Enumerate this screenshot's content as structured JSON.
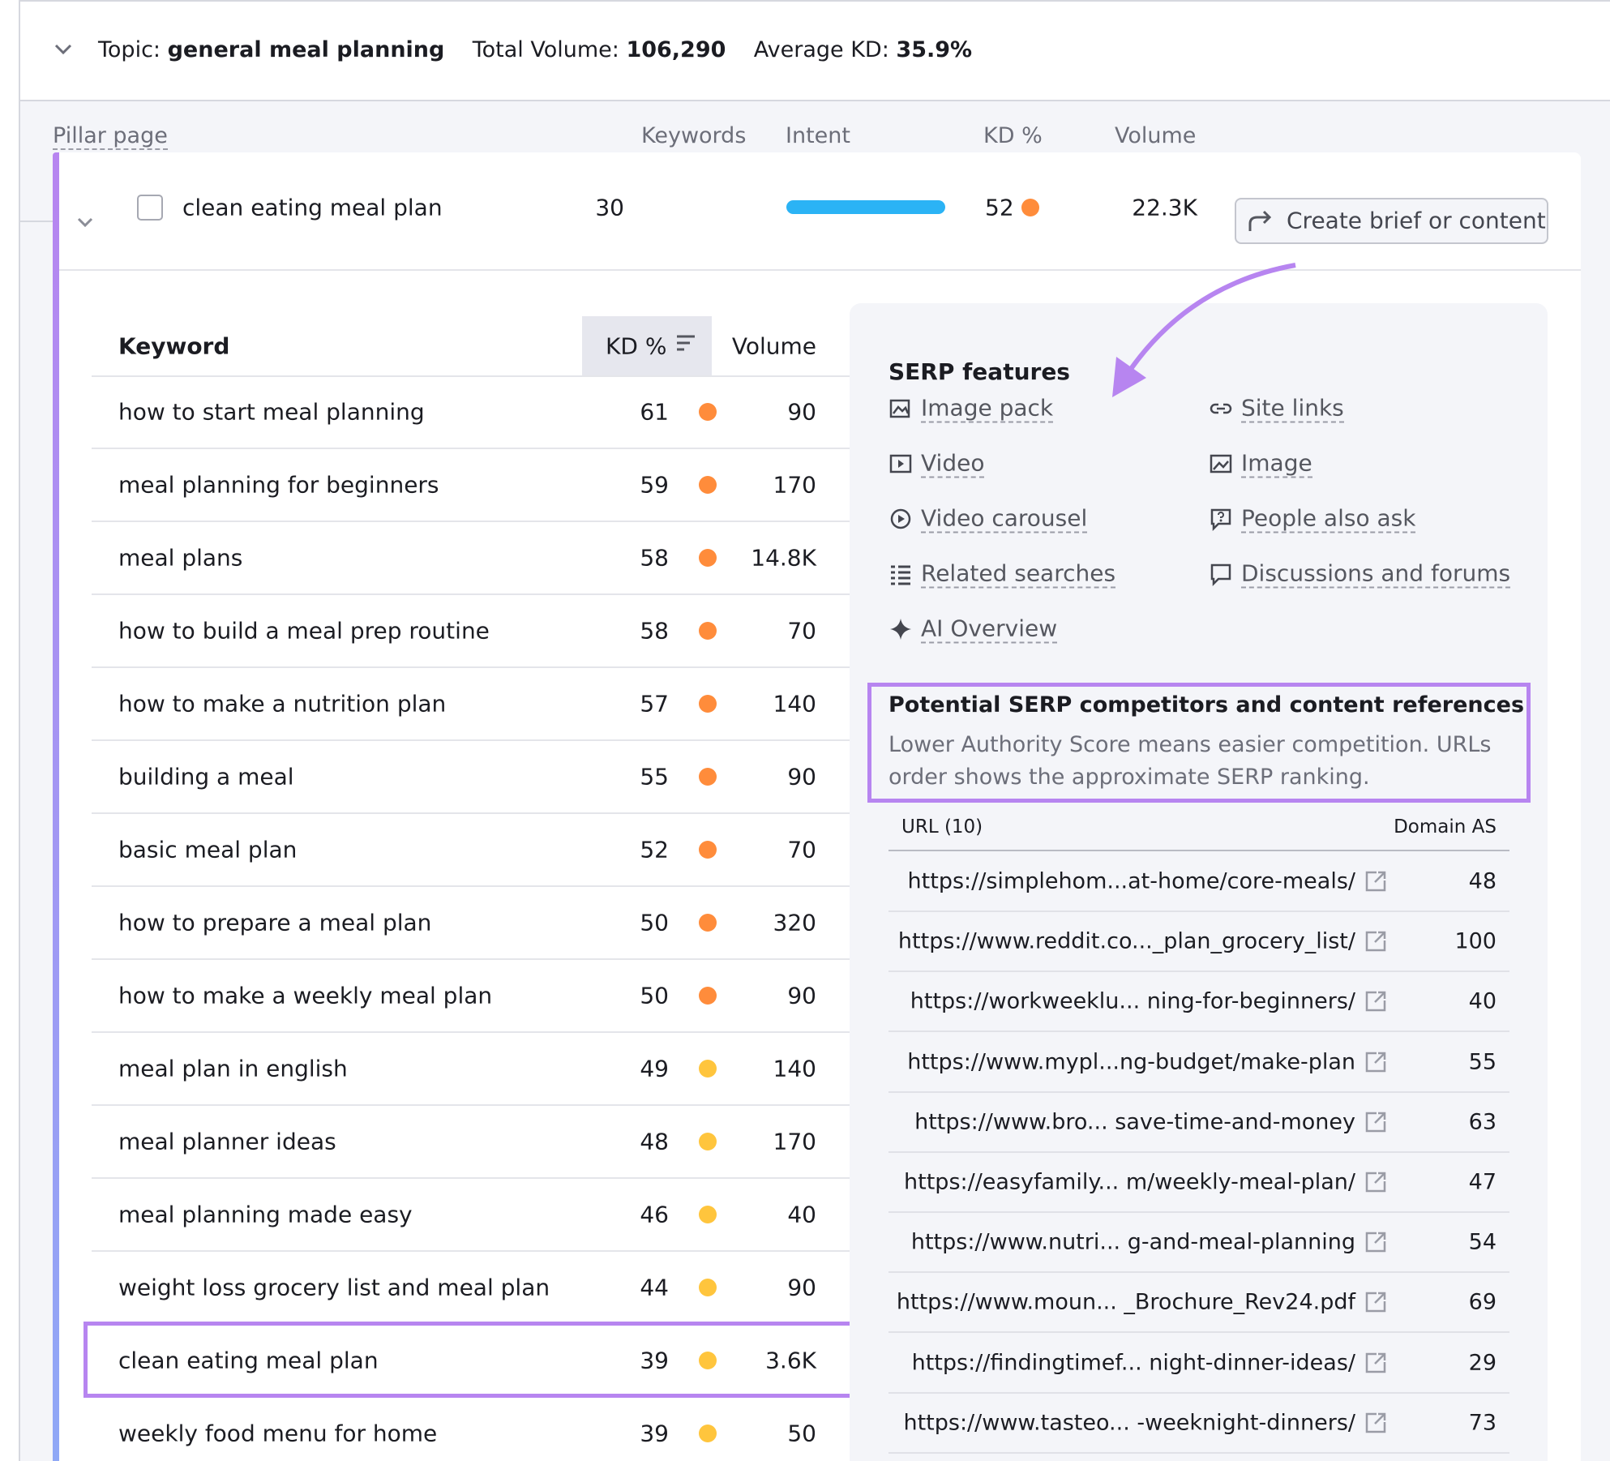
{
  "header": {
    "topic_label": "Topic:",
    "topic": "general meal planning",
    "volume_label": "Total Volume:",
    "volume": "106,290",
    "kd_label": "Average KD:",
    "kd": "35.9%"
  },
  "columns": {
    "pillar": "Pillar page",
    "keywords": "Keywords",
    "intent": "Intent",
    "kd": "KD %",
    "volume": "Volume"
  },
  "pillar": {
    "name": "clean eating meal plan",
    "keywords": 30,
    "kd": 52,
    "volume": "22.3K",
    "button": "Create brief or content"
  },
  "keyword_table": {
    "headers": [
      "Keyword",
      "KD %",
      "Volume"
    ],
    "highlighted_row": 13,
    "rows": [
      [
        "how to start meal planning",
        61,
        90
      ],
      [
        "meal planning for beginners",
        59,
        170
      ],
      [
        "meal plans",
        58,
        "14.8K"
      ],
      [
        "how to build a meal prep routine",
        58,
        70
      ],
      [
        "how to make a nutrition plan",
        57,
        140
      ],
      [
        "building a meal",
        55,
        90
      ],
      [
        "basic meal plan",
        52,
        70
      ],
      [
        "how to prepare a meal plan",
        50,
        320
      ],
      [
        "how to make a weekly meal plan",
        50,
        90
      ],
      [
        "meal plan in english",
        49,
        140
      ],
      [
        "meal planner ideas",
        48,
        170
      ],
      [
        "meal planning made easy",
        46,
        40
      ],
      [
        "weight loss grocery list and meal plan",
        44,
        90
      ],
      [
        "clean eating meal plan",
        39,
        "3.6K"
      ],
      [
        "weekly food menu for home",
        39,
        50
      ]
    ]
  },
  "serp_features": {
    "title": "SERP features",
    "items": [
      "Image pack",
      "Site links",
      "Video",
      "Image",
      "Video carousel",
      "People also ask",
      "Related searches",
      "Discussions and forums",
      "AI Overview"
    ]
  },
  "competitors": {
    "title": "Potential SERP competitors and content references",
    "description": "Lower Authority Score means easier competition. URLs order shows the approximate SERP ranking.",
    "headers": [
      "URL (10)",
      "Domain AS"
    ],
    "rows": [
      [
        "https://simplehom...at-home/core-meals/",
        48
      ],
      [
        "https://www.reddit.co..._plan_grocery_list/",
        100
      ],
      [
        "https://workweeklu... ning-for-beginners/",
        40
      ],
      [
        "https://www.mypl...ng-budget/make-plan",
        55
      ],
      [
        "https://www.bro... save-time-and-money",
        63
      ],
      [
        "https://easyfamily... m/weekly-meal-plan/",
        47
      ],
      [
        "https://www.nutri... g-and-meal-planning",
        54
      ],
      [
        "https://www.moun... _Brochure_Rev24.pdf",
        69
      ],
      [
        "https://findingtimef...  night-dinner-ideas/",
        29
      ],
      [
        "https://www.tasteo... -weeknight-dinners/",
        73
      ]
    ]
  }
}
